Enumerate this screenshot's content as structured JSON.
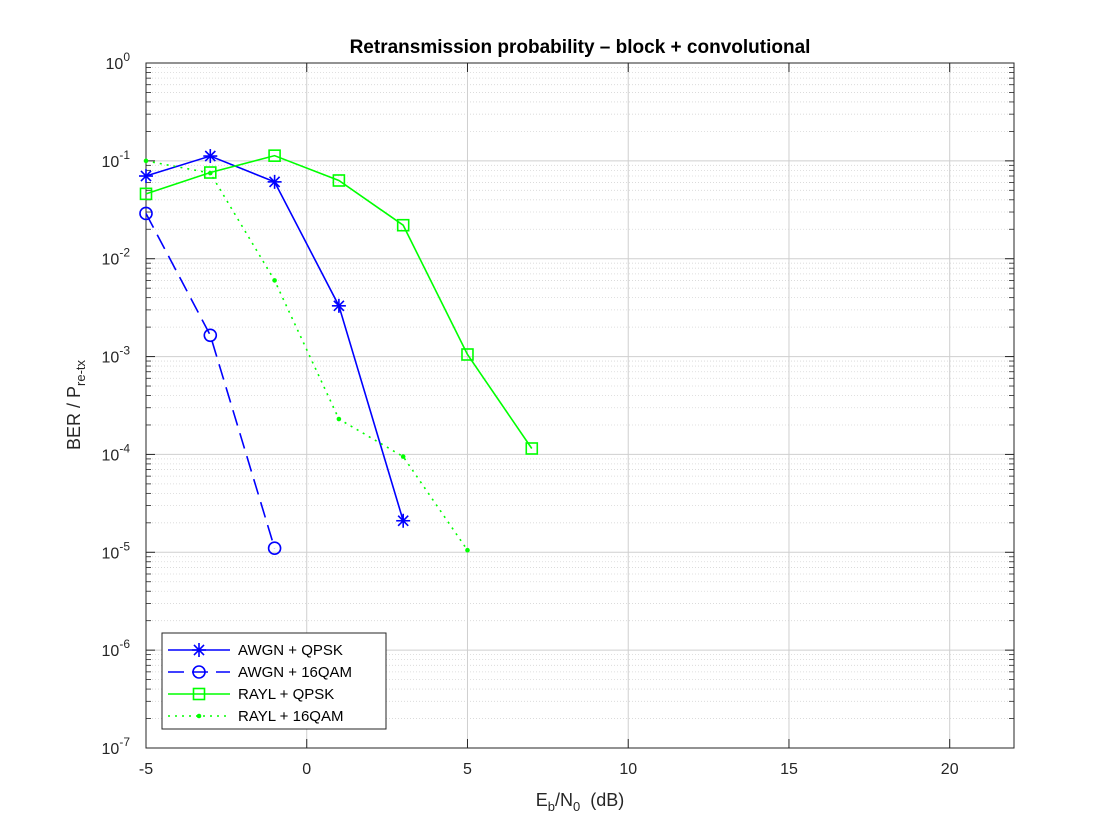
{
  "chart_data": {
    "type": "line",
    "title": "Retransmission probability – block + convolutional",
    "xlabel": {
      "main": "E",
      "sub": "b",
      "mid": "/N",
      "sub2": "0",
      "tail": "  (dB)"
    },
    "ylabel": {
      "main": "BER / P",
      "sub": "re-tx"
    },
    "xlim": [
      -5,
      22
    ],
    "ylim": [
      1e-07,
      1
    ],
    "yscale": "log",
    "grid": true,
    "minor_grid": true,
    "legend_position": "bottom-left",
    "x_ticks": [
      -5,
      0,
      5,
      10,
      15,
      20
    ],
    "x_tick_labels": [
      "-5",
      "0",
      "5",
      "10",
      "15",
      "20"
    ],
    "y_ticks": [
      {
        "value": 1e-07,
        "base": "10",
        "exp": "-7"
      },
      {
        "value": 1e-06,
        "base": "10",
        "exp": "-6"
      },
      {
        "value": 1e-05,
        "base": "10",
        "exp": "-5"
      },
      {
        "value": 0.0001,
        "base": "10",
        "exp": "-4"
      },
      {
        "value": 0.001,
        "base": "10",
        "exp": "-3"
      },
      {
        "value": 0.01,
        "base": "10",
        "exp": "-2"
      },
      {
        "value": 0.1,
        "base": "10",
        "exp": "-1"
      },
      {
        "value": 1,
        "base": "10",
        "exp": "0"
      }
    ],
    "series": [
      {
        "name": "AWGN  +  QPSK",
        "color": "#0000ff",
        "line": "solid",
        "marker": "star",
        "x": [
          -5,
          -3,
          -1,
          1,
          3
        ],
        "y": [
          0.07,
          0.112,
          0.061,
          0.0033,
          2.1e-05
        ]
      },
      {
        "name": "AWGN  + 16QAM",
        "color": "#0000ff",
        "line": "dashed",
        "marker": "circle",
        "x": [
          -5,
          -3,
          -1
        ],
        "y": [
          0.029,
          0.00165,
          1.1e-05
        ]
      },
      {
        "name": "RAYL  +  QPSK",
        "color": "#00ff00",
        "line": "solid",
        "marker": "square",
        "x": [
          -5,
          -3,
          -1,
          1,
          3,
          5,
          7
        ],
        "y": [
          0.046,
          0.076,
          0.113,
          0.063,
          0.022,
          0.00105,
          0.000115
        ]
      },
      {
        "name": "RAYL  + 16QAM",
        "color": "#00ff00",
        "line": "dotted",
        "marker": "dot",
        "x": [
          -5,
          -3,
          -1,
          1,
          3,
          5
        ],
        "y": [
          0.1,
          0.075,
          0.006,
          0.00023,
          9.5e-05,
          1.05e-05
        ]
      }
    ]
  }
}
